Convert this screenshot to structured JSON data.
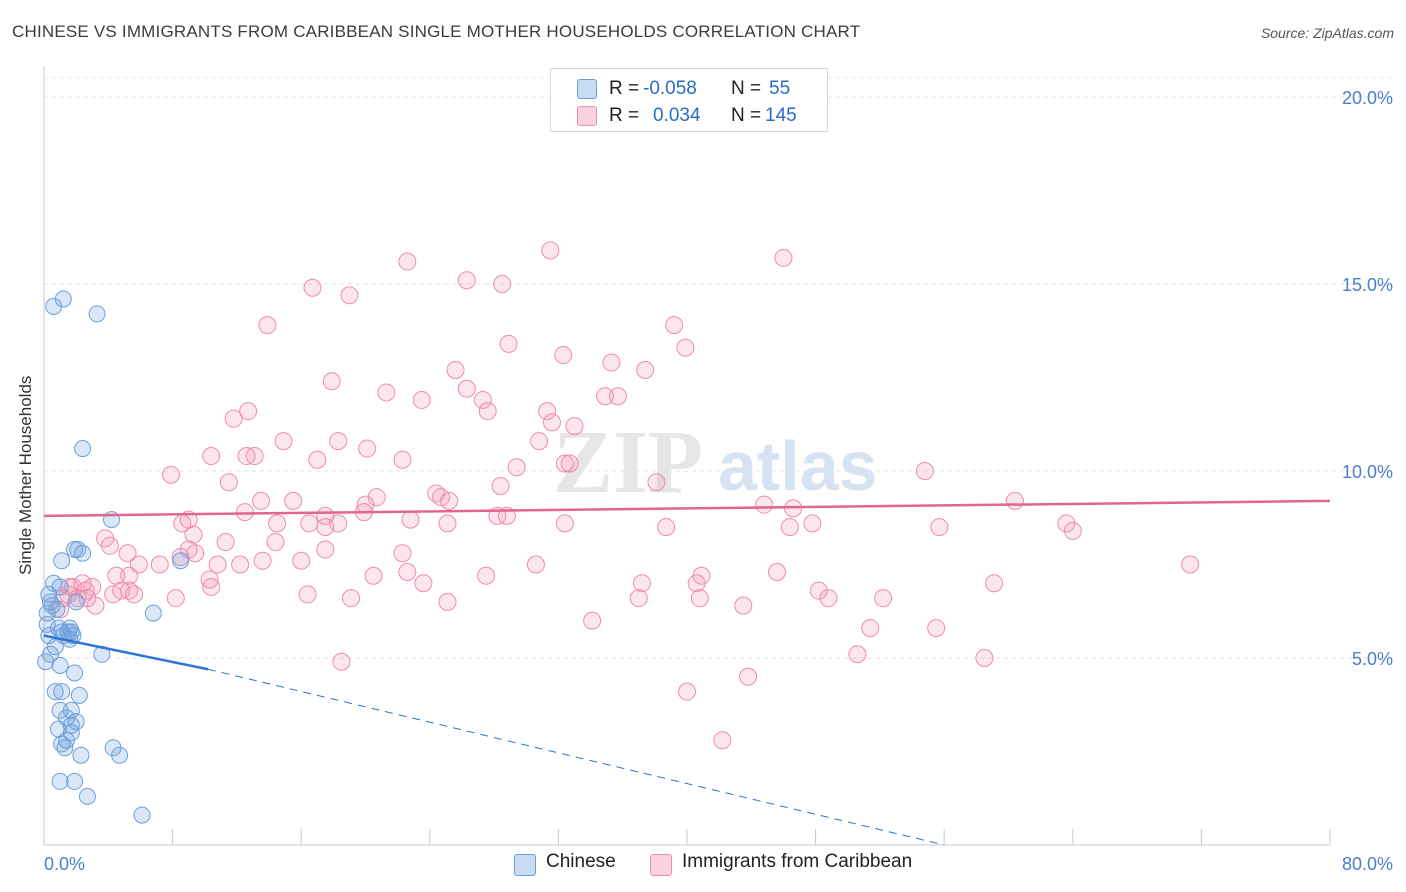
{
  "title": "CHINESE VS IMMIGRANTS FROM CARIBBEAN SINGLE MOTHER HOUSEHOLDS CORRELATION CHART",
  "source": "Source: ZipAtlas.com",
  "watermark": {
    "zip": "ZIP",
    "atlas": "atlas"
  },
  "colors": {
    "chinese": "#6b9fdc",
    "chinese_line": "#2f76d2",
    "caribbean": "#f08cab",
    "caribbean_line": "#e2668f",
    "tick_label": "#4a7fcb"
  },
  "legend": {
    "chinese": {
      "r_key": "R =",
      "r_val": "-0.058",
      "n_key": "N =",
      "n_val": "55"
    },
    "caribbean": {
      "r_key": "R =",
      "r_val": "0.034",
      "n_key": "N =",
      "n_val": "145"
    }
  },
  "bottom_legend": {
    "chinese": "Chinese",
    "caribbean": "Immigrants from Caribbean"
  },
  "chart_data": {
    "type": "scatter",
    "ylabel": "Single Mother Households",
    "xlabel": "",
    "xlim": [
      0,
      80
    ],
    "ylim": [
      0,
      20
    ],
    "x_tick_labels": [
      {
        "value": 0,
        "label": "0.0%"
      },
      {
        "value": 80,
        "label": "80.0%"
      }
    ],
    "y_tick_labels": [
      {
        "value": 5,
        "label": "5.0%"
      },
      {
        "value": 10,
        "label": "10.0%"
      },
      {
        "value": 15,
        "label": "15.0%"
      },
      {
        "value": 20,
        "label": "20.0%"
      }
    ],
    "grid": "horizontal dashed",
    "legend_position": "top-center",
    "series": [
      {
        "name": "Chinese",
        "r": -0.058,
        "n": 55,
        "trend": {
          "x0": 0,
          "y0": 5.6,
          "x1": 10.2,
          "y1": 4.7,
          "dashed_to_x": 56,
          "dashed_to_y": 0.0
        },
        "points": [
          [
            0.6,
            14.4
          ],
          [
            1.2,
            14.6
          ],
          [
            3.3,
            14.2
          ],
          [
            2.4,
            10.6
          ],
          [
            4.2,
            8.7
          ],
          [
            1.1,
            7.6
          ],
          [
            1.9,
            7.9
          ],
          [
            2.4,
            7.8
          ],
          [
            8.5,
            7.6
          ],
          [
            0.6,
            7.0
          ],
          [
            1.0,
            6.9
          ],
          [
            0.3,
            6.7
          ],
          [
            0.4,
            6.5
          ],
          [
            0.5,
            6.4
          ],
          [
            0.8,
            6.3
          ],
          [
            2.0,
            6.5
          ],
          [
            6.8,
            6.2
          ],
          [
            0.2,
            5.9
          ],
          [
            1.1,
            5.7
          ],
          [
            1.5,
            5.7
          ],
          [
            1.6,
            5.8
          ],
          [
            1.2,
            5.6
          ],
          [
            1.8,
            5.6
          ],
          [
            1.7,
            5.7
          ],
          [
            1.6,
            5.5
          ],
          [
            0.3,
            5.6
          ],
          [
            0.7,
            5.3
          ],
          [
            0.4,
            5.1
          ],
          [
            3.6,
            5.1
          ],
          [
            0.1,
            4.9
          ],
          [
            1.0,
            4.8
          ],
          [
            1.9,
            4.6
          ],
          [
            0.7,
            4.1
          ],
          [
            1.1,
            4.1
          ],
          [
            2.2,
            4.0
          ],
          [
            1.0,
            3.6
          ],
          [
            1.7,
            3.6
          ],
          [
            1.7,
            3.2
          ],
          [
            2.0,
            3.3
          ],
          [
            0.9,
            3.1
          ],
          [
            1.7,
            3.0
          ],
          [
            1.4,
            2.8
          ],
          [
            1.1,
            2.7
          ],
          [
            1.3,
            2.6
          ],
          [
            4.3,
            2.6
          ],
          [
            2.3,
            2.4
          ],
          [
            4.7,
            2.4
          ],
          [
            1.0,
            1.7
          ],
          [
            1.9,
            1.7
          ],
          [
            2.7,
            1.3
          ],
          [
            6.1,
            0.8
          ],
          [
            0.2,
            6.2
          ],
          [
            0.9,
            5.8
          ],
          [
            2.1,
            7.9
          ],
          [
            1.4,
            3.4
          ]
        ]
      },
      {
        "name": "Immigrants from Caribbean",
        "r": 0.034,
        "n": 145,
        "trend": {
          "x0": 0,
          "y0": 8.8,
          "x1": 80,
          "y1": 9.2
        },
        "points": [
          [
            31.5,
            15.9
          ],
          [
            46.0,
            15.7
          ],
          [
            22.6,
            15.6
          ],
          [
            26.3,
            15.1
          ],
          [
            28.5,
            15.0
          ],
          [
            16.7,
            14.9
          ],
          [
            19.0,
            14.7
          ],
          [
            13.9,
            13.9
          ],
          [
            39.2,
            13.9
          ],
          [
            28.9,
            13.4
          ],
          [
            39.9,
            13.3
          ],
          [
            32.3,
            13.1
          ],
          [
            35.3,
            12.9
          ],
          [
            25.6,
            12.7
          ],
          [
            37.4,
            12.7
          ],
          [
            17.9,
            12.4
          ],
          [
            26.3,
            12.2
          ],
          [
            21.3,
            12.1
          ],
          [
            34.9,
            12.0
          ],
          [
            35.7,
            12.0
          ],
          [
            23.5,
            11.9
          ],
          [
            27.3,
            11.9
          ],
          [
            31.3,
            11.6
          ],
          [
            12.7,
            11.6
          ],
          [
            27.6,
            11.6
          ],
          [
            11.8,
            11.4
          ],
          [
            31.6,
            11.3
          ],
          [
            33.0,
            11.2
          ],
          [
            14.9,
            10.8
          ],
          [
            18.3,
            10.8
          ],
          [
            30.8,
            10.8
          ],
          [
            20.1,
            10.6
          ],
          [
            10.4,
            10.4
          ],
          [
            12.6,
            10.4
          ],
          [
            13.1,
            10.4
          ],
          [
            17.0,
            10.3
          ],
          [
            22.3,
            10.3
          ],
          [
            29.4,
            10.1
          ],
          [
            32.4,
            10.2
          ],
          [
            32.7,
            10.2
          ],
          [
            7.9,
            9.9
          ],
          [
            54.8,
            10.0
          ],
          [
            11.5,
            9.7
          ],
          [
            38.1,
            9.7
          ],
          [
            28.4,
            9.6
          ],
          [
            24.4,
            9.4
          ],
          [
            20.7,
            9.3
          ],
          [
            24.7,
            9.3
          ],
          [
            25.2,
            9.2
          ],
          [
            13.5,
            9.2
          ],
          [
            15.5,
            9.2
          ],
          [
            20.0,
            9.1
          ],
          [
            60.4,
            9.2
          ],
          [
            44.8,
            9.1
          ],
          [
            46.6,
            9.0
          ],
          [
            12.5,
            8.9
          ],
          [
            19.9,
            8.9
          ],
          [
            17.5,
            8.8
          ],
          [
            28.2,
            8.8
          ],
          [
            28.8,
            8.8
          ],
          [
            9.0,
            8.7
          ],
          [
            14.5,
            8.6
          ],
          [
            18.3,
            8.6
          ],
          [
            22.8,
            8.7
          ],
          [
            25.1,
            8.6
          ],
          [
            32.4,
            8.6
          ],
          [
            47.8,
            8.6
          ],
          [
            63.6,
            8.6
          ],
          [
            8.6,
            8.6
          ],
          [
            16.5,
            8.6
          ],
          [
            17.5,
            8.5
          ],
          [
            38.7,
            8.5
          ],
          [
            55.7,
            8.5
          ],
          [
            46.4,
            8.5
          ],
          [
            64.0,
            8.4
          ],
          [
            9.3,
            8.3
          ],
          [
            11.3,
            8.1
          ],
          [
            3.8,
            8.2
          ],
          [
            4.1,
            8.0
          ],
          [
            5.2,
            7.8
          ],
          [
            9.4,
            7.8
          ],
          [
            9.0,
            7.9
          ],
          [
            14.4,
            8.1
          ],
          [
            17.5,
            7.9
          ],
          [
            22.3,
            7.8
          ],
          [
            8.5,
            7.7
          ],
          [
            10.8,
            7.5
          ],
          [
            12.2,
            7.5
          ],
          [
            13.6,
            7.6
          ],
          [
            16.0,
            7.6
          ],
          [
            22.6,
            7.3
          ],
          [
            5.9,
            7.5
          ],
          [
            7.2,
            7.5
          ],
          [
            30.6,
            7.5
          ],
          [
            45.6,
            7.3
          ],
          [
            5.3,
            7.2
          ],
          [
            20.5,
            7.2
          ],
          [
            23.6,
            7.0
          ],
          [
            27.5,
            7.2
          ],
          [
            40.9,
            7.2
          ],
          [
            48.2,
            6.8
          ],
          [
            4.5,
            7.2
          ],
          [
            10.3,
            7.1
          ],
          [
            2.4,
            7.0
          ],
          [
            3.0,
            6.9
          ],
          [
            37.2,
            7.0
          ],
          [
            40.6,
            7.0
          ],
          [
            59.1,
            7.0
          ],
          [
            71.3,
            7.5
          ],
          [
            10.4,
            6.9
          ],
          [
            4.8,
            6.8
          ],
          [
            5.3,
            6.8
          ],
          [
            8.2,
            6.6
          ],
          [
            16.4,
            6.7
          ],
          [
            19.1,
            6.6
          ],
          [
            48.8,
            6.6
          ],
          [
            52.2,
            6.6
          ],
          [
            25.1,
            6.5
          ],
          [
            37.0,
            6.6
          ],
          [
            40.8,
            6.6
          ],
          [
            43.5,
            6.4
          ],
          [
            4.3,
            6.7
          ],
          [
            5.6,
            6.7
          ],
          [
            3.2,
            6.4
          ],
          [
            1.2,
            6.6
          ],
          [
            1.5,
            6.7
          ],
          [
            1.8,
            6.9
          ],
          [
            2.1,
            6.6
          ],
          [
            2.7,
            6.6
          ],
          [
            1.0,
            6.3
          ],
          [
            34.1,
            6.0
          ],
          [
            51.4,
            5.8
          ],
          [
            55.5,
            5.8
          ],
          [
            58.5,
            5.0
          ],
          [
            50.6,
            5.1
          ],
          [
            18.5,
            4.9
          ],
          [
            43.8,
            4.5
          ],
          [
            40.0,
            4.1
          ],
          [
            42.2,
            2.8
          ],
          [
            2.6,
            6.8
          ],
          [
            1.6,
            6.9
          ]
        ]
      }
    ]
  }
}
